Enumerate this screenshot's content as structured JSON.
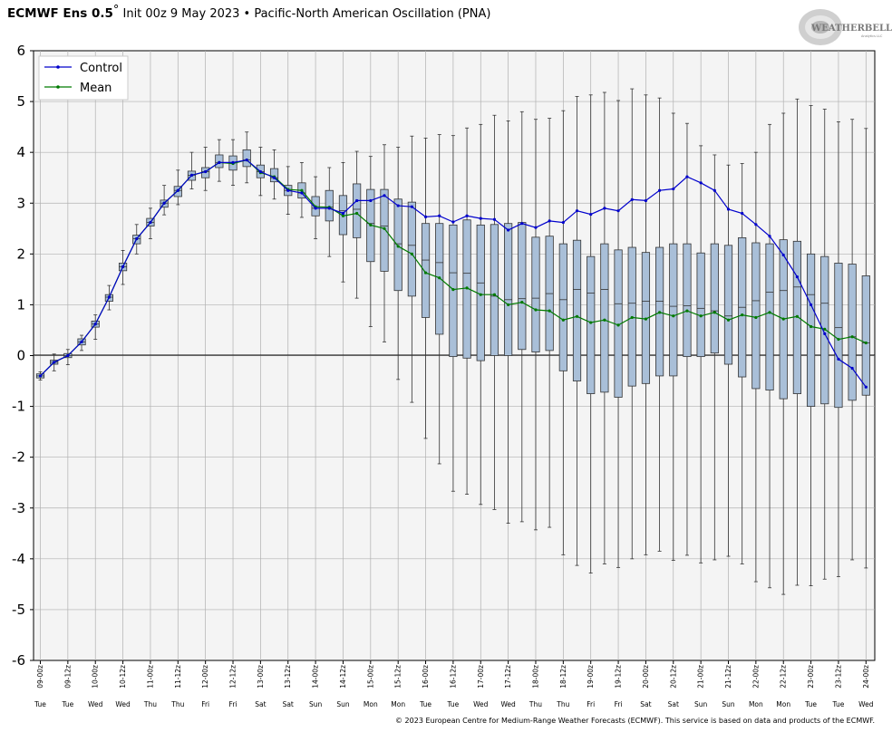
{
  "header": {
    "title_bold": "ECMWF Ens 0.5",
    "title_degree": "°",
    "title_rest": " Init 00z 9 May 2023 • Pacific-North American Oscillation (PNA)"
  },
  "logo": {
    "text_main": "WEATHERBELL",
    "text_sub": "Analytics LLC"
  },
  "footer": "© 2023 European Centre for Medium-Range Weather Forecasts (ECMWF). This service is based on data and products of the ECMWF.",
  "colors": {
    "control": "#0000cc",
    "mean": "#007a00",
    "box_fill": "#a9bfd8",
    "box_stroke": "#333333",
    "plot_bg": "#f4f4f4",
    "grid": "#b0b0b0",
    "zero_line": "#000000"
  },
  "chart_data": {
    "type": "box-line",
    "title": "ECMWF Ens 0.5° Init 00z 9 May 2023 • Pacific-North American Oscillation (PNA)",
    "ylim": [
      -6,
      6
    ],
    "yticks": [
      -6,
      -5,
      -4,
      -3,
      -2,
      -1,
      0,
      1,
      2,
      3,
      4,
      5,
      6
    ],
    "grid": true,
    "legend": {
      "placement": "top-left",
      "entries": [
        "Control",
        "Mean"
      ]
    },
    "x_tick_labels": [
      {
        "time": "09-00z",
        "day": "Tue"
      },
      {
        "time": "09-12z",
        "day": "Tue"
      },
      {
        "time": "10-00z",
        "day": "Wed"
      },
      {
        "time": "10-12z",
        "day": "Wed"
      },
      {
        "time": "11-00z",
        "day": "Thu"
      },
      {
        "time": "11-12z",
        "day": "Thu"
      },
      {
        "time": "12-00z",
        "day": "Fri"
      },
      {
        "time": "12-12z",
        "day": "Fri"
      },
      {
        "time": "13-00z",
        "day": "Sat"
      },
      {
        "time": "13-12z",
        "day": "Sat"
      },
      {
        "time": "14-00z",
        "day": "Sun"
      },
      {
        "time": "14-12z",
        "day": "Sun"
      },
      {
        "time": "15-00z",
        "day": "Mon"
      },
      {
        "time": "15-12z",
        "day": "Mon"
      },
      {
        "time": "16-00z",
        "day": "Tue"
      },
      {
        "time": "16-12z",
        "day": "Tue"
      },
      {
        "time": "17-00z",
        "day": "Wed"
      },
      {
        "time": "17-12z",
        "day": "Wed"
      },
      {
        "time": "18-00z",
        "day": "Thu"
      },
      {
        "time": "18-12z",
        "day": "Thu"
      },
      {
        "time": "19-00z",
        "day": "Fri"
      },
      {
        "time": "19-12z",
        "day": "Fri"
      },
      {
        "time": "20-00z",
        "day": "Sat"
      },
      {
        "time": "20-12z",
        "day": "Sat"
      },
      {
        "time": "21-00z",
        "day": "Sun"
      },
      {
        "time": "21-12z",
        "day": "Sun"
      },
      {
        "time": "22-00z",
        "day": "Mon"
      },
      {
        "time": "22-12z",
        "day": "Mon"
      },
      {
        "time": "23-00z",
        "day": "Tue"
      },
      {
        "time": "23-12z",
        "day": "Tue"
      },
      {
        "time": "24-00z",
        "day": "Wed"
      }
    ],
    "series": [
      {
        "name": "Control",
        "values": [
          -0.4,
          -0.13,
          0.0,
          0.27,
          0.62,
          1.15,
          1.75,
          2.3,
          2.62,
          3.0,
          3.25,
          3.55,
          3.62,
          3.8,
          3.8,
          3.85,
          3.62,
          3.5,
          3.25,
          3.2,
          2.9,
          2.9,
          2.8,
          3.05,
          3.05,
          3.15,
          2.95,
          2.93,
          2.73,
          2.75,
          2.63,
          2.75,
          2.7,
          2.68,
          2.47,
          2.6,
          2.52,
          2.65,
          2.62,
          2.85,
          2.78,
          2.9,
          2.85,
          3.07,
          3.05,
          3.25,
          3.28,
          3.52,
          3.4,
          3.25,
          2.88,
          2.8,
          2.58,
          2.35,
          1.98,
          1.55,
          1.0,
          0.43,
          -0.07,
          -0.25,
          -0.62
        ]
      },
      {
        "name": "Mean",
        "values": [
          -0.4,
          -0.13,
          0.0,
          0.27,
          0.62,
          1.15,
          1.75,
          2.3,
          2.62,
          3.0,
          3.25,
          3.55,
          3.62,
          3.8,
          3.78,
          3.85,
          3.6,
          3.52,
          3.27,
          3.25,
          2.93,
          2.92,
          2.75,
          2.8,
          2.57,
          2.5,
          2.15,
          2.0,
          1.63,
          1.53,
          1.3,
          1.33,
          1.2,
          1.2,
          1.0,
          1.05,
          0.9,
          0.88,
          0.7,
          0.77,
          0.65,
          0.7,
          0.6,
          0.75,
          0.72,
          0.85,
          0.78,
          0.88,
          0.78,
          0.85,
          0.7,
          0.8,
          0.75,
          0.85,
          0.72,
          0.77,
          0.57,
          0.52,
          0.32,
          0.37,
          0.25
        ]
      }
    ],
    "boxes": [
      {
        "min": -0.48,
        "q1": -0.44,
        "median": -0.4,
        "q3": -0.36,
        "max": -0.32
      },
      {
        "min": -0.3,
        "q1": -0.17,
        "median": -0.13,
        "q3": -0.09,
        "max": 0.03
      },
      {
        "min": -0.18,
        "q1": -0.04,
        "median": 0.0,
        "q3": 0.04,
        "max": 0.12
      },
      {
        "min": 0.1,
        "q1": 0.21,
        "median": 0.27,
        "q3": 0.33,
        "max": 0.4
      },
      {
        "min": 0.32,
        "q1": 0.56,
        "median": 0.62,
        "q3": 0.68,
        "max": 0.8
      },
      {
        "min": 0.9,
        "q1": 1.07,
        "median": 1.15,
        "q3": 1.2,
        "max": 1.38
      },
      {
        "min": 1.4,
        "q1": 1.67,
        "median": 1.75,
        "q3": 1.82,
        "max": 2.07
      },
      {
        "min": 2.0,
        "q1": 2.2,
        "median": 2.3,
        "q3": 2.37,
        "max": 2.58
      },
      {
        "min": 2.3,
        "q1": 2.55,
        "median": 2.62,
        "q3": 2.7,
        "max": 2.9
      },
      {
        "min": 2.77,
        "q1": 2.92,
        "median": 3.0,
        "q3": 3.06,
        "max": 3.35
      },
      {
        "min": 2.97,
        "q1": 3.13,
        "median": 3.25,
        "q3": 3.33,
        "max": 3.65
      },
      {
        "min": 3.28,
        "q1": 3.45,
        "median": 3.55,
        "q3": 3.63,
        "max": 4.0
      },
      {
        "min": 3.25,
        "q1": 3.5,
        "median": 3.62,
        "q3": 3.7,
        "max": 4.1
      },
      {
        "min": 3.43,
        "q1": 3.7,
        "median": 3.8,
        "q3": 3.95,
        "max": 4.25
      },
      {
        "min": 3.35,
        "q1": 3.65,
        "median": 3.8,
        "q3": 3.93,
        "max": 4.25
      },
      {
        "min": 3.4,
        "q1": 3.72,
        "median": 3.85,
        "q3": 4.05,
        "max": 4.4
      },
      {
        "min": 3.15,
        "q1": 3.5,
        "median": 3.62,
        "q3": 3.75,
        "max": 4.1
      },
      {
        "min": 3.08,
        "q1": 3.42,
        "median": 3.5,
        "q3": 3.68,
        "max": 4.05
      },
      {
        "min": 2.78,
        "q1": 3.15,
        "median": 3.25,
        "q3": 3.35,
        "max": 3.72
      },
      {
        "min": 2.72,
        "q1": 3.1,
        "median": 3.2,
        "q3": 3.4,
        "max": 3.8
      },
      {
        "min": 2.3,
        "q1": 2.75,
        "median": 2.9,
        "q3": 3.13,
        "max": 3.52
      },
      {
        "min": 1.95,
        "q1": 2.65,
        "median": 2.92,
        "q3": 3.25,
        "max": 3.7
      },
      {
        "min": 1.45,
        "q1": 2.38,
        "median": 2.85,
        "q3": 3.15,
        "max": 3.8
      },
      {
        "min": 1.13,
        "q1": 2.32,
        "median": 2.88,
        "q3": 3.38,
        "max": 4.02
      },
      {
        "min": 0.57,
        "q1": 1.85,
        "median": 2.6,
        "q3": 3.27,
        "max": 3.92
      },
      {
        "min": 0.27,
        "q1": 1.66,
        "median": 2.55,
        "q3": 3.27,
        "max": 4.15
      },
      {
        "min": -0.47,
        "q1": 1.28,
        "median": 2.2,
        "q3": 3.08,
        "max": 4.1
      },
      {
        "min": -0.92,
        "q1": 1.17,
        "median": 2.17,
        "q3": 3.02,
        "max": 4.32
      },
      {
        "min": -1.63,
        "q1": 0.75,
        "median": 1.88,
        "q3": 2.6,
        "max": 4.28
      },
      {
        "min": -2.13,
        "q1": 0.42,
        "median": 1.83,
        "q3": 2.6,
        "max": 4.35
      },
      {
        "min": -2.67,
        "q1": -0.02,
        "median": 1.63,
        "q3": 2.57,
        "max": 4.33
      },
      {
        "min": -2.73,
        "q1": -0.05,
        "median": 1.62,
        "q3": 2.67,
        "max": 4.48
      },
      {
        "min": -2.93,
        "q1": -0.1,
        "median": 1.43,
        "q3": 2.57,
        "max": 4.55
      },
      {
        "min": -3.03,
        "q1": 0.0,
        "median": 1.17,
        "q3": 2.58,
        "max": 4.73
      },
      {
        "min": -3.3,
        "q1": 0.0,
        "median": 1.1,
        "q3": 2.6,
        "max": 4.62
      },
      {
        "min": -3.27,
        "q1": 0.12,
        "median": 1.12,
        "q3": 2.62,
        "max": 4.8
      },
      {
        "min": -3.43,
        "q1": 0.07,
        "median": 1.13,
        "q3": 2.33,
        "max": 4.65
      },
      {
        "min": -3.38,
        "q1": 0.1,
        "median": 1.22,
        "q3": 2.35,
        "max": 4.67
      },
      {
        "min": -3.92,
        "q1": -0.3,
        "median": 1.1,
        "q3": 2.2,
        "max": 4.82
      },
      {
        "min": -4.13,
        "q1": -0.5,
        "median": 1.3,
        "q3": 2.27,
        "max": 5.1
      },
      {
        "min": -4.28,
        "q1": -0.75,
        "median": 1.23,
        "q3": 1.95,
        "max": 5.13
      },
      {
        "min": -4.1,
        "q1": -0.72,
        "median": 1.3,
        "q3": 2.2,
        "max": 5.18
      },
      {
        "min": -4.17,
        "q1": -0.82,
        "median": 1.02,
        "q3": 2.08,
        "max": 5.02
      },
      {
        "min": -4.0,
        "q1": -0.6,
        "median": 1.03,
        "q3": 2.13,
        "max": 5.25
      },
      {
        "min": -3.92,
        "q1": -0.55,
        "median": 1.07,
        "q3": 2.03,
        "max": 5.13
      },
      {
        "min": -3.85,
        "q1": -0.4,
        "median": 1.07,
        "q3": 2.13,
        "max": 5.07
      },
      {
        "min": -4.03,
        "q1": -0.4,
        "median": 0.97,
        "q3": 2.2,
        "max": 4.77
      },
      {
        "min": -3.93,
        "q1": -0.02,
        "median": 0.98,
        "q3": 2.2,
        "max": 4.57
      },
      {
        "min": -4.08,
        "q1": -0.02,
        "median": 0.93,
        "q3": 2.02,
        "max": 4.13
      },
      {
        "min": -4.02,
        "q1": 0.05,
        "median": 0.88,
        "q3": 2.2,
        "max": 3.95
      },
      {
        "min": -3.95,
        "q1": -0.17,
        "median": 0.78,
        "q3": 2.17,
        "max": 3.75
      },
      {
        "min": -4.1,
        "q1": -0.42,
        "median": 0.95,
        "q3": 2.32,
        "max": 3.78
      },
      {
        "min": -4.45,
        "q1": -0.65,
        "median": 1.08,
        "q3": 2.22,
        "max": 4.0
      },
      {
        "min": -4.57,
        "q1": -0.68,
        "median": 1.25,
        "q3": 2.2,
        "max": 4.55
      },
      {
        "min": -4.7,
        "q1": -0.85,
        "median": 1.28,
        "q3": 2.28,
        "max": 4.77
      },
      {
        "min": -4.52,
        "q1": -0.75,
        "median": 1.35,
        "q3": 2.25,
        "max": 5.05
      },
      {
        "min": -4.53,
        "q1": -1.0,
        "median": 1.2,
        "q3": 2.0,
        "max": 4.92
      },
      {
        "min": -4.4,
        "q1": -0.95,
        "median": 1.03,
        "q3": 1.95,
        "max": 4.85
      },
      {
        "min": -4.35,
        "q1": -1.02,
        "median": 0.55,
        "q3": 1.82,
        "max": 4.6
      },
      {
        "min": -4.02,
        "q1": -0.88,
        "median": 0.37,
        "q3": 1.8,
        "max": 4.65
      },
      {
        "min": -4.18,
        "q1": -0.78,
        "median": 0.25,
        "q3": 1.57,
        "max": 4.47
      }
    ]
  }
}
